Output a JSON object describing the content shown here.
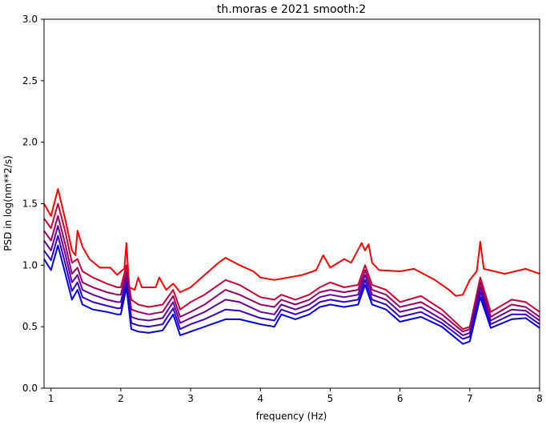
{
  "chart_data": {
    "type": "line",
    "title": "th.moras e 2021 smooth:2",
    "xlabel": "frequency (Hz)",
    "ylabel": "PSD in log(nm**2/s)",
    "xlim": [
      0.9,
      8.0
    ],
    "ylim": [
      0.0,
      3.0
    ],
    "xticks": [
      1,
      2,
      3,
      4,
      5,
      6,
      7,
      8
    ],
    "xtick_labels": [
      "1",
      "2",
      "3",
      "4",
      "5",
      "6",
      "7",
      "8"
    ],
    "yticks": [
      0.0,
      0.5,
      1.0,
      1.5,
      2.0,
      2.5,
      3.0
    ],
    "ytick_labels": [
      "0.0",
      "0.5",
      "1.0",
      "1.5",
      "2.0",
      "2.5",
      "3.0"
    ],
    "grid": false,
    "legend": "none",
    "series": [
      {
        "color": "#ff0000",
        "x": [
          0.9,
          1.0,
          1.1,
          1.2,
          1.3,
          1.35,
          1.38,
          1.45,
          1.55,
          1.7,
          1.85,
          1.95,
          2.0,
          2.05,
          2.08,
          2.12,
          2.2,
          2.25,
          2.3,
          2.5,
          2.55,
          2.65,
          2.75,
          2.85,
          3.0,
          3.2,
          3.4,
          3.5,
          3.7,
          3.9,
          4.0,
          4.2,
          4.4,
          4.6,
          4.8,
          4.9,
          5.0,
          5.2,
          5.3,
          5.45,
          5.5,
          5.55,
          5.6,
          5.7,
          6.0,
          6.2,
          6.5,
          6.7,
          6.8,
          6.9,
          7.0,
          7.1,
          7.15,
          7.2,
          7.5,
          7.8,
          8.0
        ],
        "y": [
          1.5,
          1.4,
          1.62,
          1.38,
          1.12,
          1.08,
          1.28,
          1.15,
          1.05,
          0.98,
          0.98,
          0.92,
          0.95,
          0.97,
          1.18,
          0.82,
          0.8,
          0.9,
          0.82,
          0.82,
          0.9,
          0.8,
          0.85,
          0.78,
          0.82,
          0.92,
          1.02,
          1.06,
          1.0,
          0.95,
          0.9,
          0.88,
          0.9,
          0.92,
          0.96,
          1.08,
          0.98,
          1.05,
          1.02,
          1.18,
          1.12,
          1.17,
          1.02,
          0.96,
          0.95,
          0.97,
          0.88,
          0.8,
          0.75,
          0.76,
          0.88,
          0.95,
          1.19,
          0.97,
          0.93,
          0.97,
          0.93
        ]
      },
      {
        "color": "#cc0033",
        "x": [
          0.9,
          1.0,
          1.1,
          1.2,
          1.3,
          1.38,
          1.45,
          1.6,
          1.8,
          1.95,
          2.0,
          2.08,
          2.15,
          2.25,
          2.4,
          2.6,
          2.75,
          2.85,
          3.0,
          3.2,
          3.5,
          3.7,
          4.0,
          4.2,
          4.3,
          4.5,
          4.7,
          4.85,
          5.0,
          5.2,
          5.4,
          5.5,
          5.6,
          5.8,
          6.0,
          6.3,
          6.6,
          6.9,
          7.0,
          7.15,
          7.3,
          7.6,
          7.8,
          8.0
        ],
        "y": [
          1.38,
          1.3,
          1.5,
          1.28,
          1.02,
          1.05,
          0.95,
          0.9,
          0.85,
          0.82,
          0.82,
          1.0,
          0.72,
          0.68,
          0.66,
          0.68,
          0.8,
          0.64,
          0.7,
          0.76,
          0.88,
          0.84,
          0.74,
          0.72,
          0.76,
          0.72,
          0.76,
          0.82,
          0.86,
          0.82,
          0.84,
          1.0,
          0.84,
          0.8,
          0.7,
          0.75,
          0.64,
          0.48,
          0.5,
          0.9,
          0.62,
          0.72,
          0.7,
          0.62
        ]
      },
      {
        "color": "#990066",
        "x": [
          0.9,
          1.0,
          1.1,
          1.2,
          1.3,
          1.38,
          1.45,
          1.6,
          1.8,
          1.95,
          2.0,
          2.08,
          2.15,
          2.25,
          2.4,
          2.6,
          2.75,
          2.85,
          3.0,
          3.2,
          3.5,
          3.7,
          4.0,
          4.2,
          4.3,
          4.5,
          4.7,
          4.85,
          5.0,
          5.2,
          5.4,
          5.5,
          5.6,
          5.8,
          6.0,
          6.3,
          6.6,
          6.9,
          7.0,
          7.15,
          7.3,
          7.6,
          7.8,
          8.0
        ],
        "y": [
          1.28,
          1.2,
          1.4,
          1.18,
          0.93,
          0.98,
          0.86,
          0.82,
          0.78,
          0.76,
          0.76,
          0.95,
          0.64,
          0.62,
          0.6,
          0.62,
          0.75,
          0.58,
          0.62,
          0.68,
          0.8,
          0.76,
          0.68,
          0.66,
          0.72,
          0.68,
          0.72,
          0.78,
          0.8,
          0.78,
          0.8,
          0.96,
          0.8,
          0.76,
          0.66,
          0.7,
          0.6,
          0.46,
          0.48,
          0.86,
          0.58,
          0.68,
          0.66,
          0.58
        ]
      },
      {
        "color": "#660099",
        "x": [
          0.9,
          1.0,
          1.1,
          1.2,
          1.3,
          1.38,
          1.45,
          1.6,
          1.8,
          1.95,
          2.0,
          2.08,
          2.15,
          2.25,
          2.4,
          2.6,
          2.75,
          2.85,
          3.0,
          3.2,
          3.5,
          3.7,
          4.0,
          4.2,
          4.3,
          4.5,
          4.7,
          4.85,
          5.0,
          5.2,
          5.4,
          5.5,
          5.6,
          5.8,
          6.0,
          6.3,
          6.6,
          6.9,
          7.0,
          7.15,
          7.3,
          7.6,
          7.8,
          8.0
        ],
        "y": [
          1.2,
          1.12,
          1.32,
          1.1,
          0.86,
          0.92,
          0.8,
          0.76,
          0.72,
          0.7,
          0.7,
          0.9,
          0.58,
          0.56,
          0.55,
          0.57,
          0.7,
          0.53,
          0.57,
          0.62,
          0.72,
          0.7,
          0.62,
          0.6,
          0.68,
          0.64,
          0.68,
          0.74,
          0.76,
          0.74,
          0.76,
          0.92,
          0.76,
          0.72,
          0.62,
          0.66,
          0.56,
          0.43,
          0.45,
          0.82,
          0.55,
          0.64,
          0.63,
          0.55
        ]
      },
      {
        "color": "#3300cc",
        "x": [
          0.9,
          1.0,
          1.1,
          1.2,
          1.3,
          1.38,
          1.45,
          1.6,
          1.8,
          1.95,
          2.0,
          2.08,
          2.15,
          2.25,
          2.4,
          2.6,
          2.75,
          2.85,
          3.0,
          3.2,
          3.5,
          3.7,
          4.0,
          4.2,
          4.3,
          4.5,
          4.7,
          4.85,
          5.0,
          5.2,
          5.4,
          5.5,
          5.6,
          5.8,
          6.0,
          6.3,
          6.6,
          6.9,
          7.0,
          7.15,
          7.3,
          7.6,
          7.8,
          8.0
        ],
        "y": [
          1.12,
          1.04,
          1.24,
          1.02,
          0.79,
          0.86,
          0.74,
          0.7,
          0.67,
          0.65,
          0.65,
          0.86,
          0.53,
          0.51,
          0.5,
          0.52,
          0.65,
          0.48,
          0.52,
          0.56,
          0.64,
          0.63,
          0.57,
          0.55,
          0.64,
          0.6,
          0.64,
          0.7,
          0.72,
          0.7,
          0.72,
          0.88,
          0.72,
          0.68,
          0.58,
          0.62,
          0.53,
          0.4,
          0.42,
          0.78,
          0.52,
          0.6,
          0.6,
          0.52
        ]
      },
      {
        "color": "#0000ee",
        "x": [
          0.9,
          1.0,
          1.1,
          1.2,
          1.3,
          1.38,
          1.45,
          1.6,
          1.8,
          1.95,
          2.0,
          2.08,
          2.15,
          2.25,
          2.4,
          2.6,
          2.75,
          2.85,
          3.0,
          3.2,
          3.5,
          3.7,
          4.0,
          4.2,
          4.3,
          4.5,
          4.7,
          4.85,
          5.0,
          5.2,
          5.4,
          5.5,
          5.6,
          5.8,
          6.0,
          6.3,
          6.6,
          6.9,
          7.0,
          7.15,
          7.3,
          7.6,
          7.8,
          8.0
        ],
        "y": [
          1.05,
          0.96,
          1.16,
          0.94,
          0.72,
          0.8,
          0.68,
          0.64,
          0.62,
          0.6,
          0.6,
          0.82,
          0.48,
          0.46,
          0.45,
          0.47,
          0.6,
          0.43,
          0.46,
          0.5,
          0.56,
          0.56,
          0.52,
          0.5,
          0.6,
          0.56,
          0.6,
          0.66,
          0.68,
          0.66,
          0.68,
          0.84,
          0.68,
          0.64,
          0.54,
          0.58,
          0.5,
          0.36,
          0.38,
          0.74,
          0.49,
          0.56,
          0.57,
          0.49
        ]
      }
    ]
  }
}
